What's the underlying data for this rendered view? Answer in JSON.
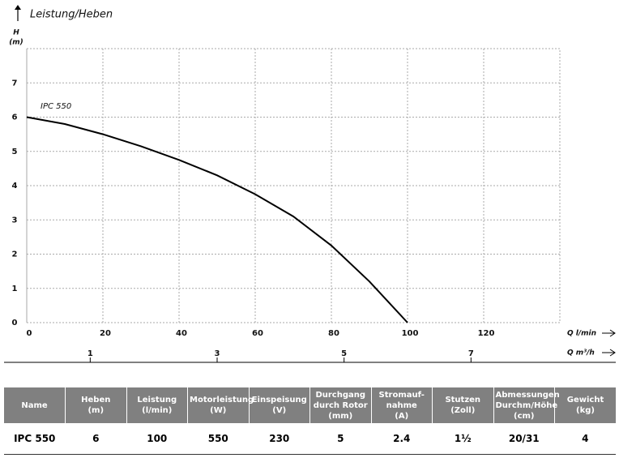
{
  "chart_data": {
    "type": "line",
    "title": "Leistung/Heben",
    "y_label": "H",
    "y_unit": "(m)",
    "x_label": "Q l/min",
    "x2_label": "Q m³/h",
    "x": [
      0,
      10,
      20,
      30,
      40,
      50,
      60,
      70,
      80,
      90,
      100
    ],
    "series": [
      {
        "name": "IPC 550",
        "color": "#000000",
        "values": [
          6,
          5.8,
          5.5,
          5.15,
          4.75,
          4.3,
          3.75,
          3.1,
          2.25,
          1.2,
          0
        ]
      }
    ],
    "xlim": [
      0,
      140
    ],
    "xticks": [
      0,
      20,
      40,
      60,
      80,
      100,
      120
    ],
    "ylim": [
      0,
      8
    ],
    "yticks": [
      0,
      1,
      2,
      3,
      4,
      5,
      6,
      7
    ],
    "x2lim": [
      0,
      8.4
    ],
    "x2ticks": [
      1,
      3,
      5,
      7
    ],
    "grid": true
  },
  "table": {
    "headers": [
      "Name",
      "Heben\n(m)",
      "Leistung\n(l/min)",
      "Motorleistung\n(W)",
      "Einspeisung\n(V)",
      "Durchgang durch Rotor\n(mm)",
      "Stromauf-\nnahme\n(A)",
      "Stutzen\n(Zoll)",
      "Abmessungen\nDurchm/Höhe (cm)",
      "Gewicht\n(kg)"
    ],
    "rows": [
      [
        "IPC 550",
        "6",
        "100",
        "550",
        "230",
        "5",
        "2.4",
        "1½",
        "20/31",
        "4"
      ]
    ]
  }
}
